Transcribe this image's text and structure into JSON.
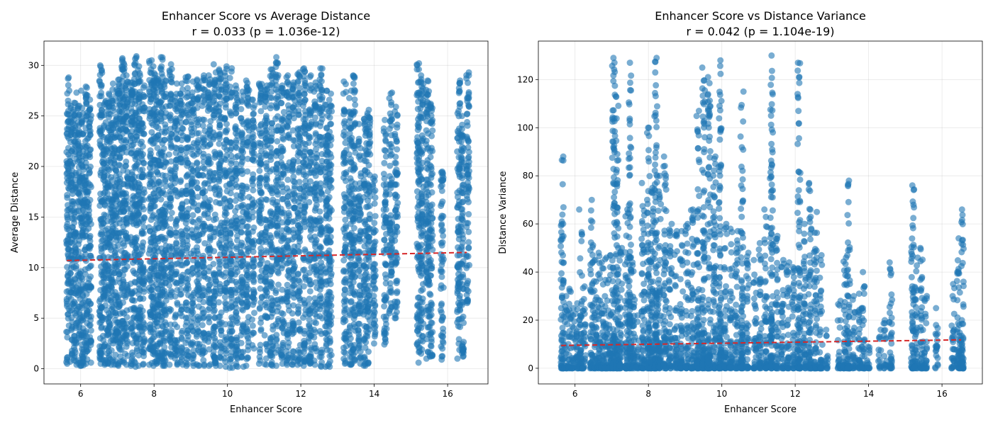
{
  "chart_data": [
    {
      "type": "scatter",
      "title": "Enhancer Score vs Average Distance",
      "subtitle": "r = 0.033 (p = 1.036e-12)",
      "xlabel": "Enhancer Score",
      "ylabel": "Average Distance",
      "xlim": [
        5.0,
        17.1
      ],
      "ylim": [
        -1.5,
        32.4
      ],
      "xticks": [
        6,
        8,
        10,
        12,
        14,
        16
      ],
      "yticks": [
        0,
        5,
        10,
        15,
        20,
        25,
        30
      ],
      "grid": true,
      "point_color": "#1f77b4",
      "point_alpha": 0.6,
      "trend_color": "#d62728",
      "trend_line": {
        "x": [
          5.62,
          16.52
        ],
        "y": [
          10.7,
          11.5
        ]
      },
      "columns": [
        {
          "x": 5.65,
          "lo": 0.5,
          "hi": 28.8
        },
        {
          "x": 5.75,
          "lo": 0.7,
          "hi": 26.0
        },
        {
          "x": 5.85,
          "lo": 0.4,
          "hi": 27.3
        },
        {
          "x": 5.95,
          "lo": 0.3,
          "hi": 26.0
        },
        {
          "x": 6.05,
          "lo": 0.3,
          "hi": 27.5
        },
        {
          "x": 6.15,
          "lo": 0.5,
          "hi": 27.9
        },
        {
          "x": 6.25,
          "lo": 0.6,
          "hi": 26.6
        },
        {
          "x": 6.55,
          "lo": 0.5,
          "hi": 30.0
        },
        {
          "x": 6.65,
          "lo": 0.4,
          "hi": 26.5
        },
        {
          "x": 6.75,
          "lo": 0.5,
          "hi": 27.2
        },
        {
          "x": 6.85,
          "lo": 0.4,
          "hi": 28.2
        },
        {
          "x": 6.95,
          "lo": 0.4,
          "hi": 27.6
        },
        {
          "x": 7.05,
          "lo": 0.3,
          "hi": 28.6
        },
        {
          "x": 7.15,
          "lo": 0.6,
          "hi": 30.7
        },
        {
          "x": 7.25,
          "lo": 0.4,
          "hi": 29.0
        },
        {
          "x": 7.4,
          "lo": 0.3,
          "hi": 28.3
        },
        {
          "x": 7.5,
          "lo": 0.2,
          "hi": 30.9
        },
        {
          "x": 7.6,
          "lo": 0.3,
          "hi": 29.9
        },
        {
          "x": 7.7,
          "lo": 0.4,
          "hi": 28.0
        },
        {
          "x": 7.9,
          "lo": 0.4,
          "hi": 30.5
        },
        {
          "x": 8.0,
          "lo": 0.3,
          "hi": 29.9
        },
        {
          "x": 8.1,
          "lo": 0.5,
          "hi": 28.7
        },
        {
          "x": 8.2,
          "lo": 0.3,
          "hi": 30.8
        },
        {
          "x": 8.3,
          "lo": 0.3,
          "hi": 28.5
        },
        {
          "x": 8.45,
          "lo": 0.4,
          "hi": 30.1
        },
        {
          "x": 8.6,
          "lo": 0.4,
          "hi": 28.2
        },
        {
          "x": 8.75,
          "lo": 0.4,
          "hi": 28.2
        },
        {
          "x": 8.9,
          "lo": 0.3,
          "hi": 28.9
        },
        {
          "x": 9.05,
          "lo": 0.3,
          "hi": 28.4
        },
        {
          "x": 9.2,
          "lo": 0.3,
          "hi": 28.6
        },
        {
          "x": 9.35,
          "lo": 0.3,
          "hi": 29.0
        },
        {
          "x": 9.5,
          "lo": 0.3,
          "hi": 29.0
        },
        {
          "x": 9.65,
          "lo": 0.3,
          "hi": 30.1
        },
        {
          "x": 9.8,
          "lo": 0.3,
          "hi": 29.6
        },
        {
          "x": 9.95,
          "lo": 0.2,
          "hi": 29.9
        },
        {
          "x": 10.1,
          "lo": 0.1,
          "hi": 29.7
        },
        {
          "x": 10.25,
          "lo": 0.2,
          "hi": 28.0
        },
        {
          "x": 10.4,
          "lo": 0.2,
          "hi": 27.4
        },
        {
          "x": 10.55,
          "lo": 0.3,
          "hi": 28.5
        },
        {
          "x": 10.7,
          "lo": 2.0,
          "hi": 26.6
        },
        {
          "x": 10.9,
          "lo": 0.5,
          "hi": 28.2
        },
        {
          "x": 11.05,
          "lo": 0.4,
          "hi": 28.0
        },
        {
          "x": 11.2,
          "lo": 0.3,
          "hi": 29.6
        },
        {
          "x": 11.35,
          "lo": 0.3,
          "hi": 30.8
        },
        {
          "x": 11.5,
          "lo": 0.5,
          "hi": 28.0
        },
        {
          "x": 11.65,
          "lo": 0.4,
          "hi": 29.0
        },
        {
          "x": 11.8,
          "lo": 0.4,
          "hi": 28.3
        },
        {
          "x": 11.95,
          "lo": 0.4,
          "hi": 29.3
        },
        {
          "x": 12.1,
          "lo": 0.3,
          "hi": 29.7
        },
        {
          "x": 12.25,
          "lo": 0.5,
          "hi": 29.0
        },
        {
          "x": 12.4,
          "lo": 0.4,
          "hi": 28.3
        },
        {
          "x": 12.55,
          "lo": 0.2,
          "hi": 29.7
        },
        {
          "x": 12.7,
          "lo": 0.2,
          "hi": 27.5
        },
        {
          "x": 12.8,
          "lo": 0.2,
          "hi": 27.2
        },
        {
          "x": 13.2,
          "lo": 0.5,
          "hi": 28.4
        },
        {
          "x": 13.35,
          "lo": 0.4,
          "hi": 27.5
        },
        {
          "x": 13.45,
          "lo": 0.8,
          "hi": 29.0
        },
        {
          "x": 13.6,
          "lo": 0.5,
          "hi": 24.2
        },
        {
          "x": 13.75,
          "lo": 0.3,
          "hi": 24.7
        },
        {
          "x": 13.85,
          "lo": 0.5,
          "hi": 25.6
        },
        {
          "x": 14.0,
          "lo": 2.5,
          "hi": 19.0
        },
        {
          "x": 14.3,
          "lo": 2.4,
          "hi": 24.6
        },
        {
          "x": 14.45,
          "lo": 5.5,
          "hi": 27.3
        },
        {
          "x": 14.6,
          "lo": 5.0,
          "hi": 25.9
        },
        {
          "x": 15.2,
          "lo": 0.6,
          "hi": 30.2
        },
        {
          "x": 15.3,
          "lo": 1.5,
          "hi": 29.0
        },
        {
          "x": 15.45,
          "lo": 1.0,
          "hi": 28.5
        },
        {
          "x": 15.55,
          "lo": 1.2,
          "hi": 26.2
        },
        {
          "x": 15.85,
          "lo": 0.9,
          "hi": 19.5
        },
        {
          "x": 16.3,
          "lo": 1.0,
          "hi": 28.5
        },
        {
          "x": 16.4,
          "lo": 1.2,
          "hi": 25.0
        },
        {
          "x": 16.55,
          "lo": 6.5,
          "hi": 29.3
        }
      ]
    },
    {
      "type": "scatter",
      "title": "Enhancer Score vs Distance Variance",
      "subtitle": "r = 0.042 (p = 1.104e-19)",
      "xlabel": "Enhancer Score",
      "ylabel": "Distance Variance",
      "xlim": [
        5.0,
        17.1
      ],
      "ylim": [
        -6.5,
        136.0
      ],
      "xticks": [
        6,
        8,
        10,
        12,
        14,
        16
      ],
      "yticks": [
        0,
        20,
        40,
        60,
        80,
        100,
        120
      ],
      "grid": true,
      "point_color": "#1f77b4",
      "point_alpha": 0.6,
      "trend_color": "#d62728",
      "trend_line": {
        "x": [
          5.62,
          16.52
        ],
        "y": [
          9.5,
          11.8
        ]
      },
      "columns": [
        {
          "x": 5.65,
          "lo": 0.0,
          "hi": 88.0
        },
        {
          "x": 5.75,
          "lo": 0.0,
          "hi": 30.0
        },
        {
          "x": 5.85,
          "lo": 0.0,
          "hi": 33.0
        },
        {
          "x": 5.95,
          "lo": 0.0,
          "hi": 25.0
        },
        {
          "x": 6.05,
          "lo": 0.0,
          "hi": 27.0
        },
        {
          "x": 6.15,
          "lo": 0.0,
          "hi": 66.0
        },
        {
          "x": 6.25,
          "lo": 0.0,
          "hi": 34.0
        },
        {
          "x": 6.45,
          "lo": 0.0,
          "hi": 70.0
        },
        {
          "x": 6.55,
          "lo": 0.0,
          "hi": 45.0
        },
        {
          "x": 6.65,
          "lo": 0.0,
          "hi": 48.0
        },
        {
          "x": 6.75,
          "lo": 0.0,
          "hi": 44.0
        },
        {
          "x": 6.85,
          "lo": 0.0,
          "hi": 46.0
        },
        {
          "x": 6.95,
          "lo": 0.0,
          "hi": 47.0
        },
        {
          "x": 7.05,
          "lo": 0.0,
          "hi": 129.0
        },
        {
          "x": 7.15,
          "lo": 0.0,
          "hi": 113.0
        },
        {
          "x": 7.25,
          "lo": 0.0,
          "hi": 50.0
        },
        {
          "x": 7.4,
          "lo": 0.0,
          "hi": 66.0
        },
        {
          "x": 7.5,
          "lo": 0.0,
          "hi": 127.0
        },
        {
          "x": 7.6,
          "lo": 0.0,
          "hi": 44.0
        },
        {
          "x": 7.7,
          "lo": 0.0,
          "hi": 22.0
        },
        {
          "x": 7.85,
          "lo": 0.0,
          "hi": 77.0
        },
        {
          "x": 8.0,
          "lo": 0.0,
          "hi": 100.0
        },
        {
          "x": 8.1,
          "lo": 0.0,
          "hi": 75.0
        },
        {
          "x": 8.2,
          "lo": 0.0,
          "hi": 129.0
        },
        {
          "x": 8.3,
          "lo": 0.0,
          "hi": 80.0
        },
        {
          "x": 8.45,
          "lo": 0.0,
          "hi": 88.0
        },
        {
          "x": 8.6,
          "lo": 0.0,
          "hi": 60.0
        },
        {
          "x": 8.75,
          "lo": 0.0,
          "hi": 57.0
        },
        {
          "x": 8.9,
          "lo": 0.0,
          "hi": 57.0
        },
        {
          "x": 9.05,
          "lo": 0.0,
          "hi": 60.0
        },
        {
          "x": 9.2,
          "lo": 0.0,
          "hi": 66.0
        },
        {
          "x": 9.35,
          "lo": 0.0,
          "hi": 107.0
        },
        {
          "x": 9.5,
          "lo": 0.0,
          "hi": 125.0
        },
        {
          "x": 9.65,
          "lo": 0.0,
          "hi": 121.0
        },
        {
          "x": 9.8,
          "lo": 0.0,
          "hi": 88.0
        },
        {
          "x": 9.95,
          "lo": 0.0,
          "hi": 128.0
        },
        {
          "x": 10.1,
          "lo": 0.0,
          "hi": 60.0
        },
        {
          "x": 10.25,
          "lo": 0.0,
          "hi": 58.0
        },
        {
          "x": 10.4,
          "lo": 0.0,
          "hi": 57.0
        },
        {
          "x": 10.55,
          "lo": 0.0,
          "hi": 115.0
        },
        {
          "x": 10.7,
          "lo": 0.0,
          "hi": 48.0
        },
        {
          "x": 10.9,
          "lo": 0.0,
          "hi": 45.0
        },
        {
          "x": 11.05,
          "lo": 0.0,
          "hi": 52.0
        },
        {
          "x": 11.2,
          "lo": 0.0,
          "hi": 66.0
        },
        {
          "x": 11.35,
          "lo": 0.0,
          "hi": 130.0
        },
        {
          "x": 11.5,
          "lo": 0.0,
          "hi": 55.0
        },
        {
          "x": 11.65,
          "lo": 0.0,
          "hi": 45.0
        },
        {
          "x": 11.8,
          "lo": 0.0,
          "hi": 44.0
        },
        {
          "x": 11.95,
          "lo": 0.0,
          "hi": 42.0
        },
        {
          "x": 12.1,
          "lo": 0.0,
          "hi": 127.0
        },
        {
          "x": 12.25,
          "lo": 0.0,
          "hi": 60.0
        },
        {
          "x": 12.4,
          "lo": 0.0,
          "hi": 77.0
        },
        {
          "x": 12.55,
          "lo": 0.0,
          "hi": 65.0
        },
        {
          "x": 12.7,
          "lo": 0.0,
          "hi": 47.0
        },
        {
          "x": 12.85,
          "lo": 0.0,
          "hi": 16.0
        },
        {
          "x": 13.2,
          "lo": 0.0,
          "hi": 28.0
        },
        {
          "x": 13.35,
          "lo": 0.0,
          "hi": 46.0
        },
        {
          "x": 13.45,
          "lo": 0.0,
          "hi": 78.0
        },
        {
          "x": 13.6,
          "lo": 0.0,
          "hi": 30.0
        },
        {
          "x": 13.75,
          "lo": 0.0,
          "hi": 31.0
        },
        {
          "x": 13.85,
          "lo": 0.0,
          "hi": 40.0
        },
        {
          "x": 14.0,
          "lo": 0.0,
          "hi": 9.0
        },
        {
          "x": 14.3,
          "lo": 0.0,
          "hi": 16.0
        },
        {
          "x": 14.45,
          "lo": 0.0,
          "hi": 20.0
        },
        {
          "x": 14.6,
          "lo": 0.0,
          "hi": 44.0
        },
        {
          "x": 15.2,
          "lo": 0.0,
          "hi": 76.0
        },
        {
          "x": 15.3,
          "lo": 0.0,
          "hi": 46.0
        },
        {
          "x": 15.45,
          "lo": 0.0,
          "hi": 50.0
        },
        {
          "x": 15.55,
          "lo": 0.0,
          "hi": 30.0
        },
        {
          "x": 15.85,
          "lo": 0.0,
          "hi": 25.0
        },
        {
          "x": 16.3,
          "lo": 0.0,
          "hi": 35.0
        },
        {
          "x": 16.45,
          "lo": 0.0,
          "hi": 54.0
        },
        {
          "x": 16.55,
          "lo": 0.0,
          "hi": 66.0
        }
      ]
    }
  ]
}
